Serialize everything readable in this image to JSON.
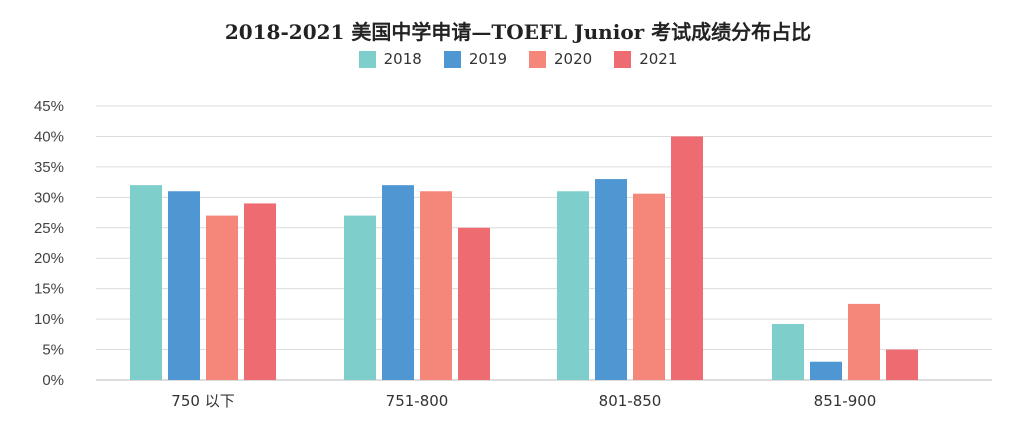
{
  "chart_data": {
    "type": "bar",
    "title": "2018-2021 美国中学申请—TOEFL Junior 考试成绩分布占比",
    "categories": [
      "750 以下",
      "751-800",
      "801-850",
      "851-900"
    ],
    "series": [
      {
        "name": "2018",
        "color": "#7ecfcc",
        "values": [
          32,
          27,
          31,
          9.2
        ]
      },
      {
        "name": "2019",
        "color": "#4e97d2",
        "values": [
          31,
          32,
          33,
          3
        ]
      },
      {
        "name": "2020",
        "color": "#f5877a",
        "values": [
          27,
          31,
          30.6,
          12.5
        ]
      },
      {
        "name": "2021",
        "color": "#ee6b72",
        "values": [
          29,
          25,
          40,
          5
        ]
      }
    ],
    "ylim": [
      0,
      45
    ],
    "yticks": [
      "0%",
      "5%",
      "10%",
      "15%",
      "20%",
      "25%",
      "30%",
      "35%",
      "40%",
      "45%"
    ],
    "grid": true,
    "legend": "top"
  }
}
